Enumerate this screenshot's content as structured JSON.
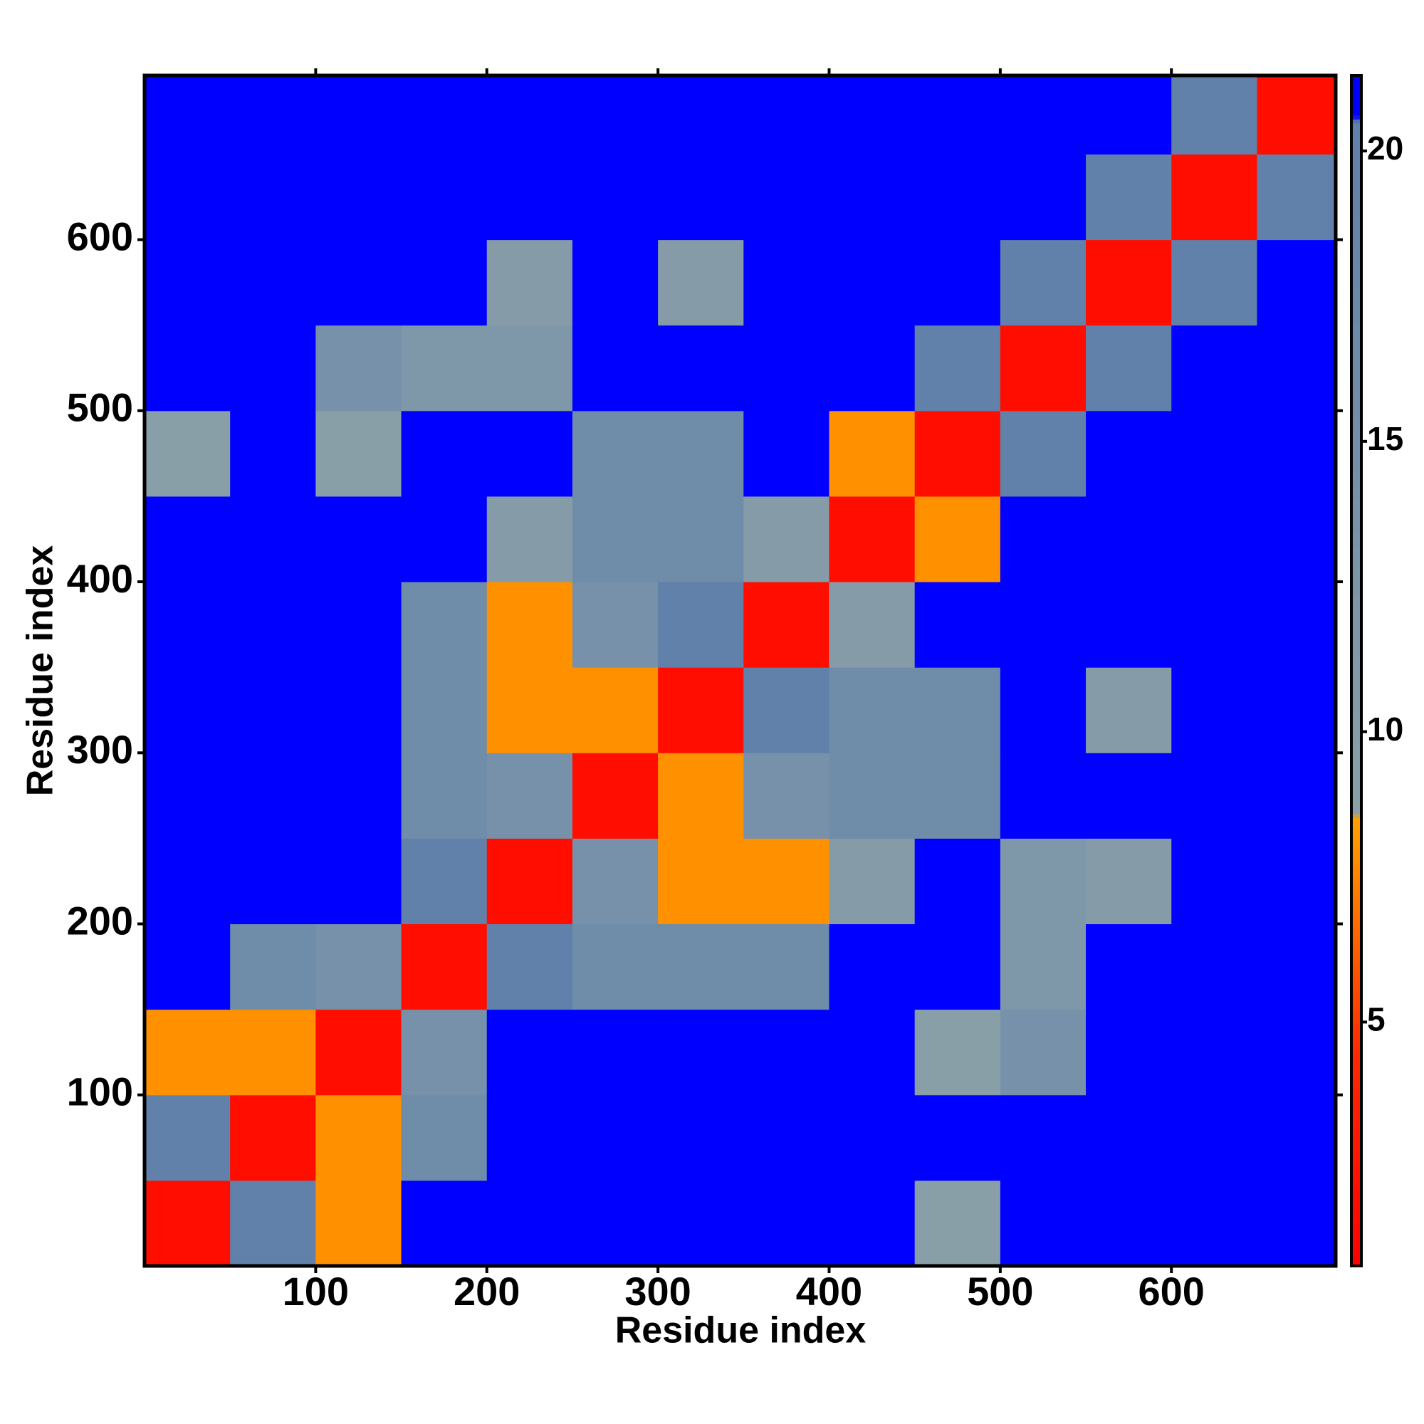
{
  "chart_data": {
    "type": "heatmap",
    "xlabel": "Residue index",
    "ylabel": "Residue index",
    "xlim": [
      0,
      696
    ],
    "ylim": [
      0,
      696
    ],
    "xticks": [
      100,
      200,
      300,
      400,
      500,
      600
    ],
    "yticks": [
      100,
      200,
      300,
      400,
      500,
      600
    ],
    "bins": [
      0,
      50,
      100,
      150,
      200,
      250,
      300,
      350,
      400,
      450,
      500,
      550,
      600,
      650,
      696
    ],
    "values": [
      [
        2,
        20,
        8,
        21,
        21,
        21,
        21,
        21,
        21,
        9,
        21,
        21,
        21,
        21
      ],
      [
        20,
        2,
        8,
        16,
        21,
        21,
        21,
        21,
        21,
        21,
        21,
        21,
        21,
        21
      ],
      [
        8,
        8,
        2,
        14,
        21,
        21,
        21,
        21,
        21,
        9,
        14,
        21,
        21,
        21
      ],
      [
        21,
        16,
        14,
        2,
        20,
        16,
        16,
        16,
        21,
        21,
        12,
        21,
        21,
        21
      ],
      [
        21,
        21,
        21,
        20,
        2,
        14,
        8,
        8,
        10,
        21,
        12,
        10,
        21,
        21
      ],
      [
        21,
        21,
        21,
        16,
        14,
        2,
        8,
        14,
        16,
        16,
        21,
        21,
        21,
        21
      ],
      [
        21,
        21,
        21,
        16,
        8,
        8,
        2,
        20,
        16,
        16,
        21,
        10,
        21,
        21
      ],
      [
        21,
        21,
        21,
        16,
        8,
        14,
        20,
        2,
        10,
        21,
        21,
        21,
        21,
        21
      ],
      [
        21,
        21,
        21,
        21,
        10,
        16,
        16,
        10,
        2,
        8,
        21,
        21,
        21,
        21
      ],
      [
        9,
        21,
        9,
        21,
        21,
        16,
        16,
        21,
        8,
        2,
        20,
        21,
        21,
        21
      ],
      [
        21,
        21,
        14,
        12,
        12,
        21,
        21,
        21,
        21,
        20,
        2,
        20,
        21,
        21
      ],
      [
        21,
        21,
        21,
        21,
        10,
        21,
        10,
        21,
        21,
        21,
        20,
        2,
        20,
        21
      ],
      [
        21,
        21,
        21,
        21,
        21,
        21,
        21,
        21,
        21,
        21,
        21,
        20,
        2,
        20
      ],
      [
        21,
        21,
        21,
        21,
        21,
        21,
        21,
        21,
        21,
        21,
        21,
        21,
        20,
        2
      ]
    ],
    "colorbar": {
      "lim": [
        0.8,
        21.3
      ],
      "ticks": [
        5,
        10,
        15,
        20
      ],
      "colorscale": [
        [
          0.8,
          "#ff0000"
        ],
        [
          4.5,
          "#ff2a00"
        ],
        [
          8.5,
          "#ffa000"
        ],
        [
          8.6,
          "#8aa0a8"
        ],
        [
          20.5,
          "#5f80aa"
        ],
        [
          20.6,
          "#0000ff"
        ],
        [
          21.3,
          "#0000ff"
        ]
      ]
    }
  }
}
